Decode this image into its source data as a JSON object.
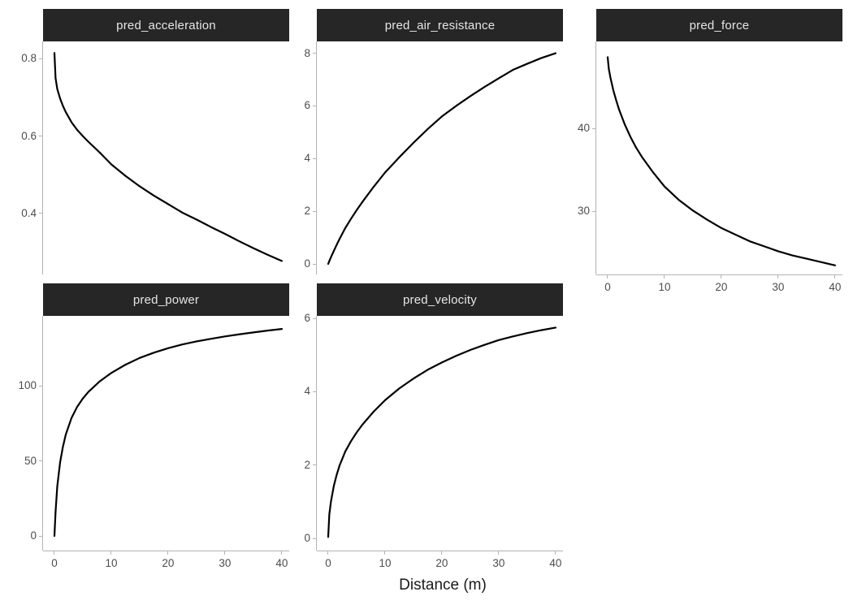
{
  "figure": {
    "xlabel": "Distance (m)",
    "background": "#ffffff",
    "strip_fill": "#262626",
    "strip_text_color": "#e6e6e6",
    "axis_color": "#b3b3b3",
    "tick_label_color": "#4d4d4d",
    "axis_title_color": "#1a1a1a",
    "curve_color": "#000000"
  },
  "chart_data": [
    {
      "type": "line",
      "title": "pred_acceleration",
      "grid": {
        "row": 0,
        "col": 0
      },
      "x": [
        0,
        0.2,
        0.5,
        1,
        1.5,
        2,
        3,
        4,
        5,
        6,
        8,
        10,
        12.5,
        15,
        17.5,
        20,
        22.5,
        25,
        27.5,
        30,
        32.5,
        35,
        37.5,
        40
      ],
      "y": [
        0.815,
        0.75,
        0.722,
        0.697,
        0.678,
        0.662,
        0.636,
        0.616,
        0.6,
        0.585,
        0.557,
        0.527,
        0.497,
        0.47,
        0.446,
        0.424,
        0.402,
        0.384,
        0.365,
        0.347,
        0.328,
        0.31,
        0.293,
        0.277
      ],
      "xlim": [
        -2,
        41.3
      ],
      "ylim": [
        0.242,
        0.845
      ],
      "xticks": [
        0,
        10,
        20,
        30,
        40
      ],
      "xtick_labels": [
        "0",
        "10",
        "20",
        "30",
        "40"
      ],
      "yticks": [
        0.4,
        0.6,
        0.8
      ],
      "ytick_labels": [
        "0.4",
        "0.6",
        "0.8"
      ],
      "show_x_axis": false,
      "grid_lines": "off"
    },
    {
      "type": "line",
      "title": "pred_air_resistance",
      "grid": {
        "row": 0,
        "col": 1
      },
      "x": [
        0,
        0.2,
        0.5,
        1,
        1.5,
        2,
        3,
        4,
        5,
        6,
        8,
        10,
        12.5,
        15,
        17.5,
        20,
        22.5,
        25,
        27.5,
        30,
        32.5,
        35,
        37.5,
        40
      ],
      "y": [
        0,
        0.11,
        0.26,
        0.5,
        0.73,
        0.95,
        1.36,
        1.71,
        2.04,
        2.35,
        2.93,
        3.47,
        4.05,
        4.6,
        5.12,
        5.6,
        6.0,
        6.37,
        6.72,
        7.05,
        7.37,
        7.6,
        7.82,
        8.0
      ],
      "xlim": [
        -2,
        41.3
      ],
      "ylim": [
        -0.4,
        8.45
      ],
      "xticks": [
        0,
        10,
        20,
        30,
        40
      ],
      "xtick_labels": [
        "0",
        "10",
        "20",
        "30",
        "40"
      ],
      "yticks": [
        0,
        2,
        4,
        6,
        8
      ],
      "ytick_labels": [
        "0",
        "2",
        "4",
        "6",
        "8"
      ],
      "show_x_axis": false,
      "grid_lines": "off"
    },
    {
      "type": "line",
      "title": "pred_force",
      "grid": {
        "row": 0,
        "col": 2
      },
      "x": [
        0,
        0.2,
        0.5,
        1,
        1.5,
        2,
        3,
        4,
        5,
        6,
        8,
        10,
        12.5,
        15,
        17.5,
        20,
        22.5,
        25,
        27.5,
        30,
        32.5,
        35,
        37.5,
        40
      ],
      "y": [
        48.6,
        47.2,
        46.1,
        44.6,
        43.4,
        42.3,
        40.5,
        39.0,
        37.7,
        36.6,
        34.7,
        33.0,
        31.4,
        30.1,
        29.0,
        28.0,
        27.2,
        26.4,
        25.8,
        25.2,
        24.7,
        24.3,
        23.9,
        23.5
      ],
      "xlim": [
        -2,
        41.3
      ],
      "ylim": [
        22.4,
        50.5
      ],
      "xticks": [
        0,
        10,
        20,
        30,
        40
      ],
      "xtick_labels": [
        "0",
        "10",
        "20",
        "30",
        "40"
      ],
      "yticks": [
        30,
        40
      ],
      "ytick_labels": [
        "30",
        "40"
      ],
      "show_x_axis": true,
      "grid_lines": "off"
    },
    {
      "type": "line",
      "title": "pred_power",
      "grid": {
        "row": 1,
        "col": 0
      },
      "x": [
        0,
        0.2,
        0.5,
        1,
        1.5,
        2,
        3,
        4,
        5,
        6,
        8,
        10,
        12.5,
        15,
        17.5,
        20,
        22.5,
        25,
        27.5,
        30,
        32.5,
        35,
        37.5,
        40
      ],
      "y": [
        0,
        16,
        33,
        49,
        59.5,
        67.5,
        78.5,
        86,
        91.5,
        96,
        103,
        108.5,
        114,
        118.5,
        122,
        125,
        127.5,
        129.5,
        131.2,
        132.8,
        134.2,
        135.5,
        136.7,
        137.8
      ],
      "xlim": [
        -2,
        41.3
      ],
      "ylim": [
        -9.7,
        146.5
      ],
      "xticks": [
        0,
        10,
        20,
        30,
        40
      ],
      "xtick_labels": [
        "0",
        "10",
        "20",
        "30",
        "40"
      ],
      "yticks": [
        0,
        50,
        100
      ],
      "ytick_labels": [
        "0",
        "50",
        "100"
      ],
      "show_x_axis": true,
      "grid_lines": "off"
    },
    {
      "type": "line",
      "title": "pred_velocity",
      "grid": {
        "row": 1,
        "col": 1
      },
      "x": [
        0,
        0.2,
        0.5,
        1,
        1.5,
        2,
        3,
        4,
        5,
        6,
        8,
        10,
        12.5,
        15,
        17.5,
        20,
        22.5,
        25,
        27.5,
        30,
        32.5,
        35,
        37.5,
        40
      ],
      "y": [
        0.04,
        0.66,
        1.02,
        1.44,
        1.74,
        1.99,
        2.37,
        2.65,
        2.89,
        3.1,
        3.46,
        3.77,
        4.09,
        4.36,
        4.6,
        4.8,
        4.98,
        5.14,
        5.28,
        5.41,
        5.51,
        5.6,
        5.68,
        5.75
      ],
      "xlim": [
        -2,
        41.3
      ],
      "ylim": [
        -0.33,
        6.07
      ],
      "xticks": [
        0,
        10,
        20,
        30,
        40
      ],
      "xtick_labels": [
        "0",
        "10",
        "20",
        "30",
        "40"
      ],
      "yticks": [
        0,
        2,
        4,
        6
      ],
      "ytick_labels": [
        "0",
        "2",
        "4",
        "6"
      ],
      "show_x_axis": true,
      "grid_lines": "off"
    }
  ]
}
